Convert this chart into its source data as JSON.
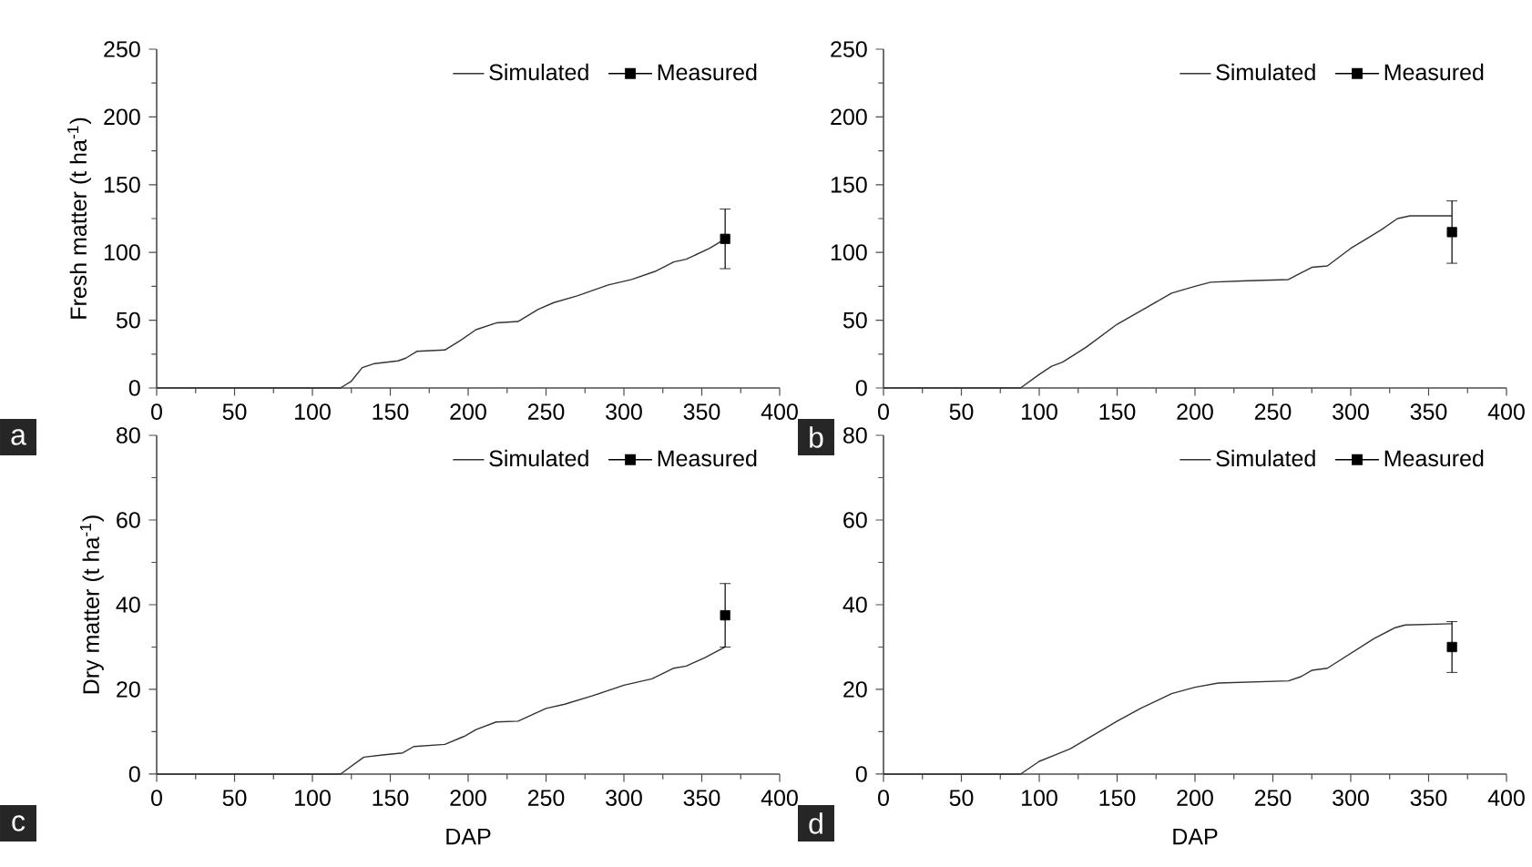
{
  "chart_data": [
    {
      "type": "line",
      "ylabel": "Fresh matter (t ha$^{-1}$)",
      "xlim": [
        0,
        400
      ],
      "xticks": [
        0,
        50,
        100,
        150,
        200,
        250,
        300,
        350,
        400
      ],
      "ylim": [
        0,
        250
      ],
      "yticks": [
        0,
        50,
        100,
        150,
        200,
        250
      ],
      "legend": "top right",
      "annotations": [
        "a"
      ],
      "series": [
        {
          "name": "Simulated",
          "marker": "none",
          "color": "#333333",
          "x": [
            0,
            118,
            125,
            132,
            140,
            155,
            160,
            167,
            185,
            195,
            205,
            218,
            232,
            245,
            255,
            270,
            290,
            305,
            320,
            332,
            340,
            355,
            365
          ],
          "values": [
            0,
            0,
            5,
            15,
            18,
            20,
            22,
            27,
            28,
            35,
            43,
            48,
            49,
            58,
            63,
            68,
            76,
            80,
            86,
            93,
            95,
            103,
            110
          ]
        },
        {
          "name": "Measured",
          "type": "scatter",
          "marker": "square",
          "color": "#000000",
          "x": [
            365
          ],
          "values": [
            110
          ],
          "errors": [
            [
              88,
              132
            ]
          ]
        }
      ]
    },
    {
      "type": "line",
      "xlim": [
        0,
        400
      ],
      "xticks": [
        0,
        50,
        100,
        150,
        200,
        250,
        300,
        350,
        400
      ],
      "ylim": [
        0,
        250
      ],
      "yticks": [
        0,
        50,
        100,
        150,
        200,
        250
      ],
      "legend": "top right",
      "annotations": [
        "b"
      ],
      "series": [
        {
          "name": "Simulated",
          "marker": "none",
          "color": "#333333",
          "x": [
            0,
            88,
            100,
            108,
            115,
            130,
            150,
            170,
            185,
            200,
            210,
            230,
            260,
            265,
            275,
            285,
            300,
            310,
            320,
            330,
            338,
            365
          ],
          "values": [
            0,
            0,
            10,
            16,
            19,
            30,
            47,
            60,
            70,
            75,
            78,
            79,
            80,
            83,
            89,
            90,
            103,
            110,
            117,
            125,
            127,
            127
          ]
        },
        {
          "name": "Measured",
          "type": "scatter",
          "marker": "square",
          "color": "#000000",
          "x": [
            365
          ],
          "values": [
            115
          ],
          "errors": [
            [
              92,
              138
            ]
          ]
        }
      ]
    },
    {
      "type": "line",
      "xlabel": "DAP",
      "ylabel": "Dry matter (t ha$^{-1}$)",
      "xlim": [
        0,
        400
      ],
      "xticks": [
        0,
        50,
        100,
        150,
        200,
        250,
        300,
        350,
        400
      ],
      "ylim": [
        0,
        80
      ],
      "yticks": [
        0,
        20,
        40,
        60,
        80
      ],
      "legend": "top right",
      "annotations": [
        "c"
      ],
      "series": [
        {
          "name": "Simulated",
          "marker": "none",
          "color": "#333333",
          "x": [
            0,
            118,
            133,
            145,
            158,
            165,
            185,
            198,
            205,
            218,
            232,
            250,
            262,
            280,
            300,
            318,
            332,
            340,
            352,
            365
          ],
          "values": [
            0,
            0,
            4,
            4.5,
            5,
            6.5,
            7,
            9,
            10.5,
            12.3,
            12.5,
            15.5,
            16.5,
            18.5,
            21,
            22.5,
            25,
            25.5,
            27.5,
            30
          ]
        },
        {
          "name": "Measured",
          "type": "scatter",
          "marker": "square",
          "color": "#000000",
          "x": [
            365
          ],
          "values": [
            37.5
          ],
          "errors": [
            [
              30,
              45
            ]
          ]
        }
      ]
    },
    {
      "type": "line",
      "xlabel": "DAP",
      "xlim": [
        0,
        400
      ],
      "xticks": [
        0,
        50,
        100,
        150,
        200,
        250,
        300,
        350,
        400
      ],
      "ylim": [
        0,
        80
      ],
      "yticks": [
        0,
        20,
        40,
        60,
        80
      ],
      "legend": "top right",
      "annotations": [
        "d"
      ],
      "series": [
        {
          "name": "Simulated",
          "marker": "none",
          "color": "#333333",
          "x": [
            0,
            88,
            100,
            110,
            120,
            150,
            165,
            185,
            200,
            215,
            260,
            268,
            275,
            285,
            300,
            315,
            328,
            335,
            365
          ],
          "values": [
            0,
            0,
            3,
            4.5,
            6,
            12.5,
            15.5,
            19,
            20.5,
            21.5,
            22,
            23,
            24.5,
            25,
            28.5,
            32,
            34.5,
            35.2,
            35.5
          ]
        },
        {
          "name": "Measured",
          "type": "scatter",
          "marker": "square",
          "color": "#000000",
          "x": [
            365
          ],
          "values": [
            30
          ],
          "errors": [
            [
              24,
              36
            ]
          ]
        }
      ]
    }
  ]
}
